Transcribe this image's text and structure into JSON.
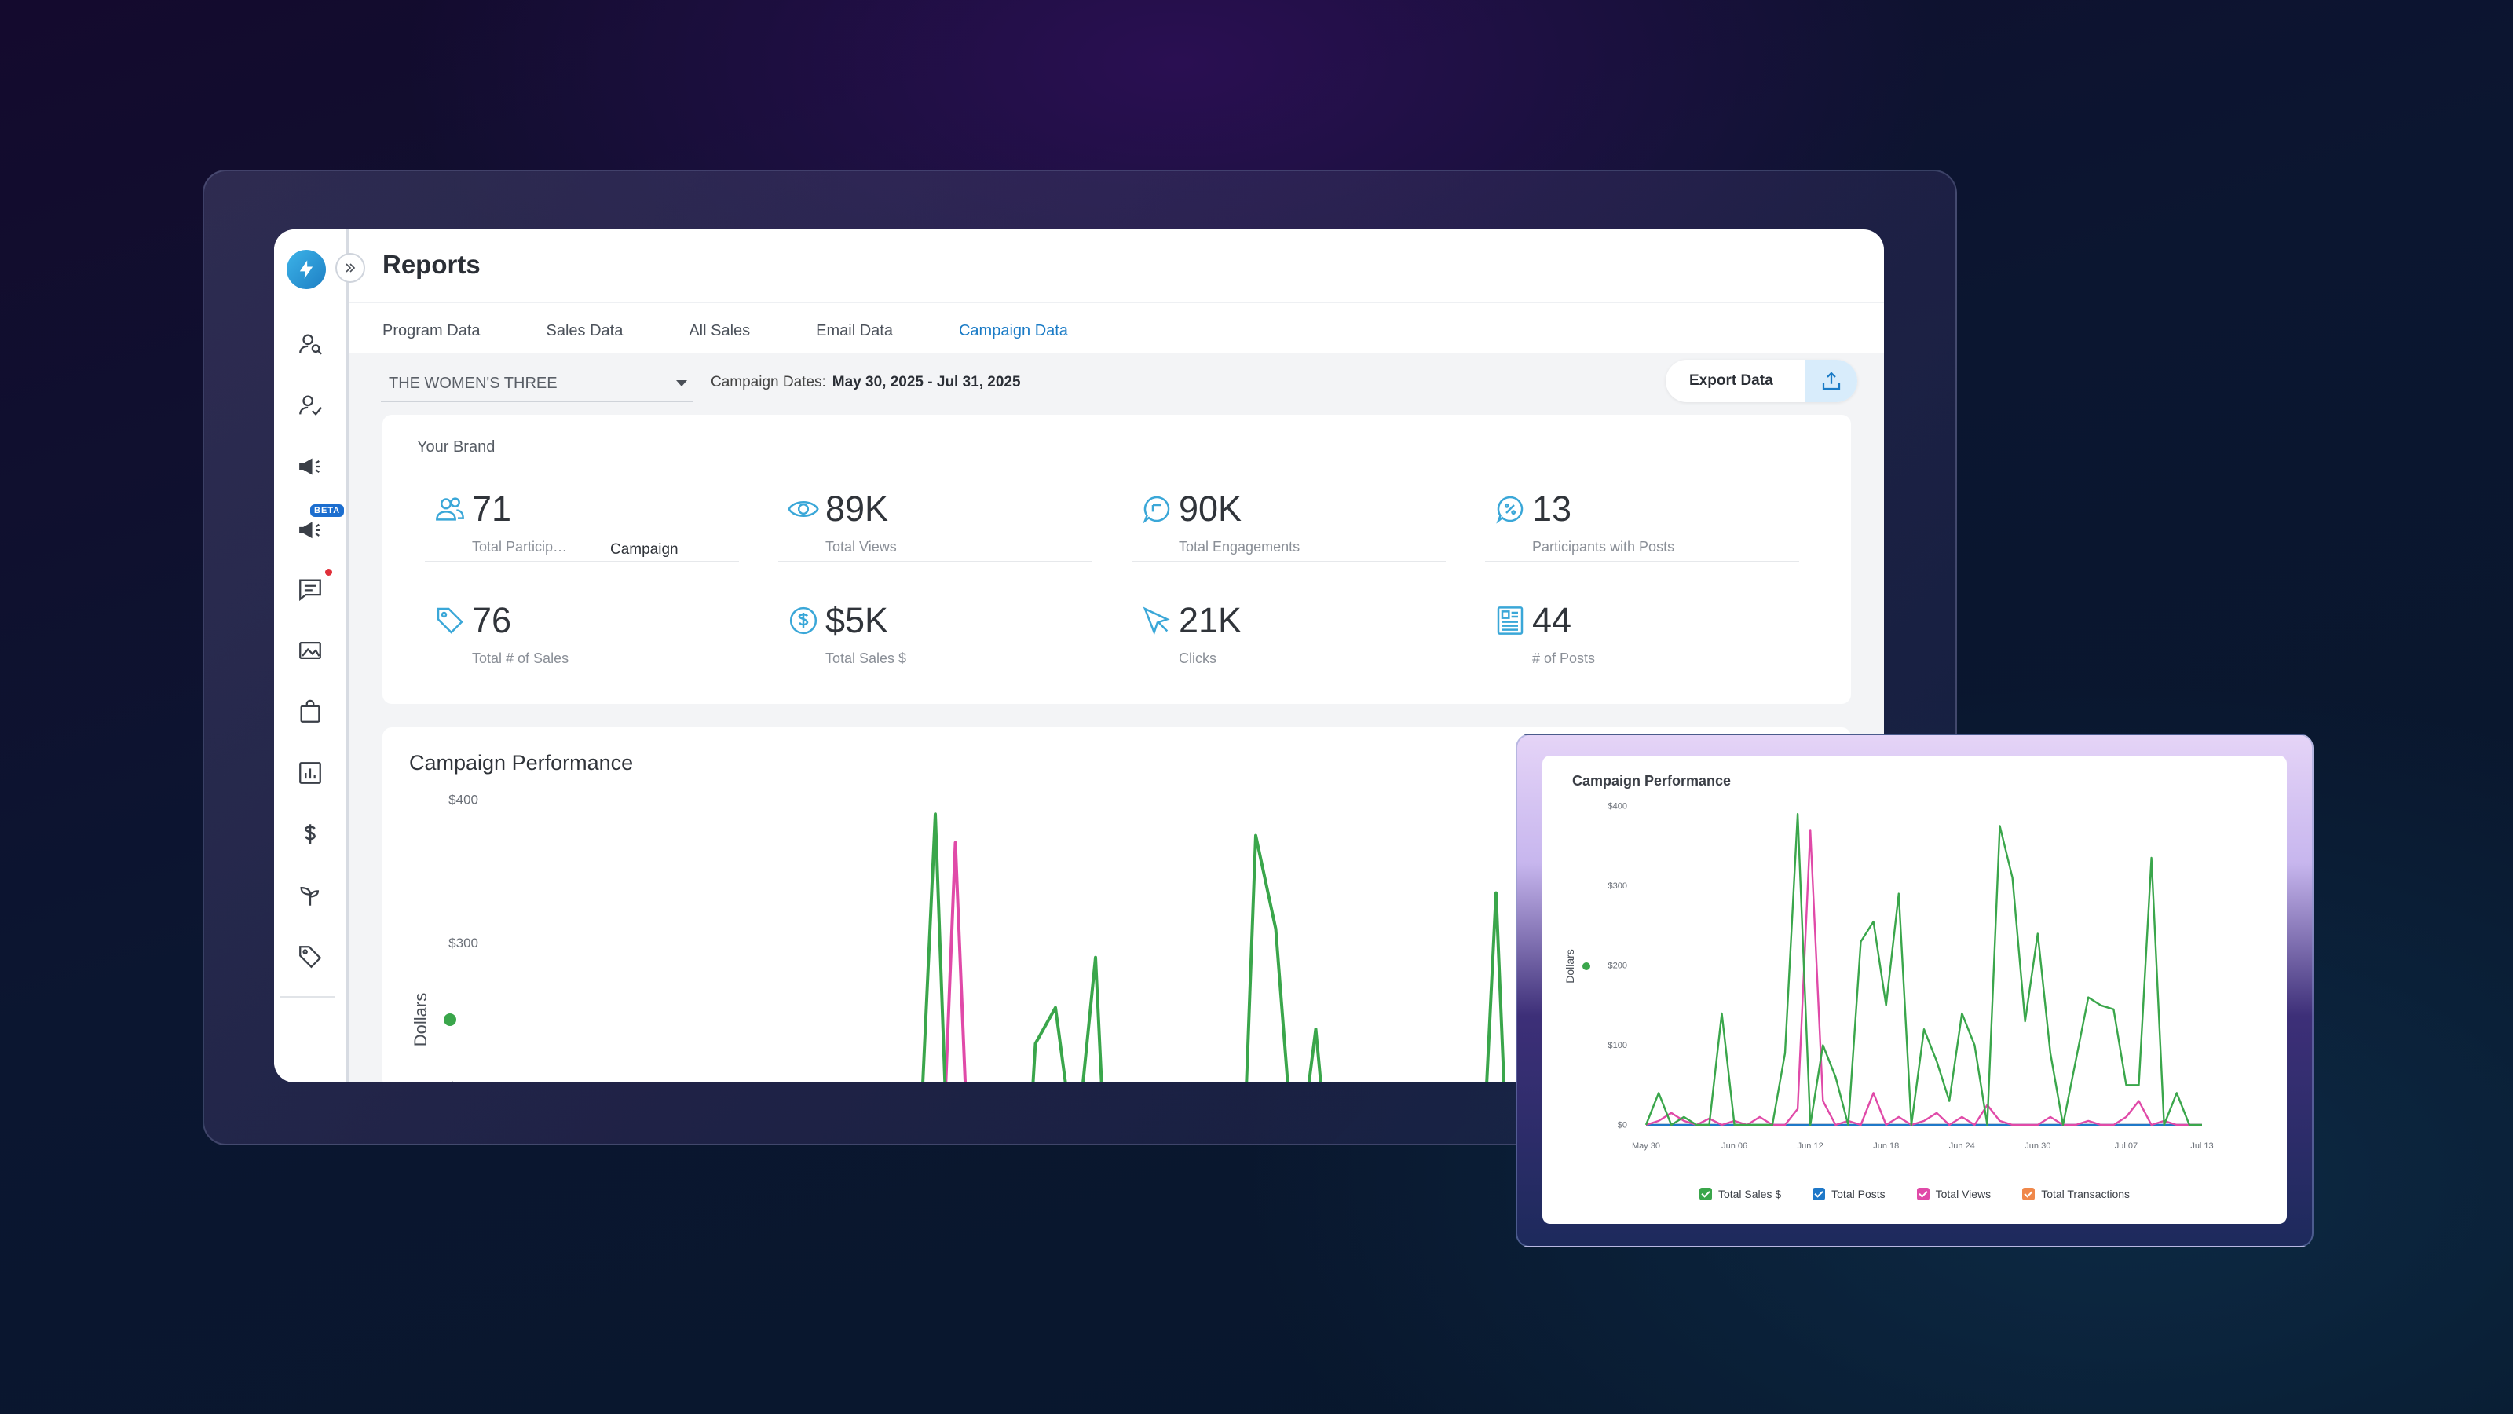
{
  "app": {
    "title": "Reports",
    "tabs": [
      {
        "label": "Program Data"
      },
      {
        "label": "Sales Data"
      },
      {
        "label": "All Sales"
      },
      {
        "label": "Email Data"
      },
      {
        "label": "Campaign Data",
        "active": true
      }
    ],
    "sidebar": {
      "icons": [
        "user-search-icon",
        "user-check-icon",
        "megaphone-icon",
        "beta-megaphone-icon",
        "chat-icon",
        "image-icon",
        "shopping-bag-icon",
        "bar-chart-icon",
        "dollar-icon",
        "sprout-icon",
        "tag-icon"
      ],
      "beta_label": "BETA"
    },
    "filters": {
      "brand": "THE WOMEN'S THREE",
      "dates_label": "Campaign Dates:",
      "dates_value": "May 30, 2025 - Jul 31, 2025",
      "export_label": "Export Data"
    },
    "brand_card": {
      "heading": "Your Brand",
      "tooltip": "Campaign",
      "stats": [
        {
          "value": "71",
          "label": "Total Particip…",
          "icon": "users-icon"
        },
        {
          "value": "89K",
          "label": "Total Views",
          "icon": "eye-icon"
        },
        {
          "value": "90K",
          "label": "Total Engagements",
          "icon": "engagement-bubble-icon"
        },
        {
          "value": "13",
          "label": "Participants with Posts",
          "icon": "participant-bubble-icon"
        },
        {
          "value": "76",
          "label": "Total # of Sales",
          "icon": "price-tag-icon"
        },
        {
          "value": "$5K",
          "label": "Total Sales $",
          "icon": "dollar-circle-icon"
        },
        {
          "value": "21K",
          "label": "Clicks",
          "icon": "cursor-icon"
        },
        {
          "value": "44",
          "label": "# of Posts",
          "icon": "document-icon"
        }
      ]
    },
    "performance": {
      "title": "Campaign Performance",
      "ylabel": "Dollars",
      "yticks": [
        "$400",
        "$300",
        "$200"
      ]
    }
  },
  "popup": {
    "title": "Campaign Performance",
    "legend": [
      {
        "label": "Total Sales $",
        "color": "#3aa64b"
      },
      {
        "label": "Total Posts",
        "color": "#1f78c8"
      },
      {
        "label": "Total Views",
        "color": "#e04aa8"
      },
      {
        "label": "Total Transactions",
        "color": "#f0884a"
      }
    ]
  },
  "chart_data": {
    "type": "line",
    "title": "Campaign Performance",
    "ylabel": "Dollars",
    "yticks": [
      "$0",
      "$100",
      "$200",
      "$300",
      "$400"
    ],
    "ylim": [
      0,
      400
    ],
    "xticks": [
      "May 30",
      "Jun 06",
      "Jun 12",
      "Jun 18",
      "Jun 24",
      "Jun 30",
      "Jul 07",
      "Jul 13"
    ],
    "x": [
      "May 30",
      "May 31",
      "Jun 01",
      "Jun 02",
      "Jun 03",
      "Jun 04",
      "Jun 05",
      "Jun 06",
      "Jun 07",
      "Jun 08",
      "Jun 09",
      "Jun 10",
      "Jun 11",
      "Jun 12",
      "Jun 13",
      "Jun 14",
      "Jun 15",
      "Jun 16",
      "Jun 17",
      "Jun 18",
      "Jun 19",
      "Jun 20",
      "Jun 21",
      "Jun 22",
      "Jun 23",
      "Jun 24",
      "Jun 25",
      "Jun 26",
      "Jun 27",
      "Jun 28",
      "Jun 29",
      "Jun 30",
      "Jul 01",
      "Jul 02",
      "Jul 03",
      "Jul 04",
      "Jul 05",
      "Jul 06",
      "Jul 07",
      "Jul 08",
      "Jul 09",
      "Jul 10",
      "Jul 11",
      "Jul 12",
      "Jul 13"
    ],
    "series": [
      {
        "name": "Total Sales $",
        "color": "#3aa64b",
        "values": [
          0,
          40,
          0,
          10,
          0,
          0,
          140,
          0,
          0,
          0,
          0,
          90,
          390,
          0,
          100,
          60,
          0,
          230,
          255,
          150,
          290,
          0,
          120,
          80,
          30,
          140,
          100,
          0,
          375,
          310,
          130,
          240,
          90,
          0,
          80,
          160,
          150,
          145,
          50,
          50,
          335,
          0,
          40,
          0,
          0
        ]
      },
      {
        "name": "Total Posts",
        "color": "#1f78c8",
        "values": [
          0,
          0,
          0,
          0,
          0,
          0,
          0,
          0,
          0,
          0,
          0,
          0,
          0,
          0,
          0,
          0,
          0,
          0,
          0,
          0,
          0,
          0,
          0,
          0,
          0,
          0,
          0,
          0,
          0,
          0,
          0,
          0,
          0,
          0,
          0,
          0,
          0,
          0,
          0,
          0,
          0,
          0,
          0,
          0,
          0
        ]
      },
      {
        "name": "Total Views",
        "color": "#e04aa8",
        "values": [
          0,
          5,
          15,
          5,
          0,
          8,
          0,
          5,
          0,
          10,
          0,
          0,
          20,
          370,
          30,
          0,
          5,
          0,
          40,
          0,
          10,
          0,
          5,
          15,
          0,
          10,
          0,
          25,
          5,
          0,
          0,
          0,
          10,
          0,
          0,
          5,
          0,
          0,
          10,
          30,
          0,
          5,
          0,
          0,
          0
        ]
      },
      {
        "name": "Total Transactions",
        "color": "#f0884a",
        "values": [
          0,
          0,
          0,
          0,
          0,
          0,
          0,
          0,
          0,
          0,
          0,
          0,
          0,
          0,
          0,
          0,
          0,
          0,
          0,
          0,
          0,
          0,
          0,
          0,
          0,
          0,
          0,
          0,
          0,
          0,
          0,
          0,
          0,
          0,
          0,
          0,
          0,
          0,
          0,
          0,
          0,
          0,
          0,
          0,
          0
        ]
      }
    ],
    "legend_position": "bottom"
  }
}
